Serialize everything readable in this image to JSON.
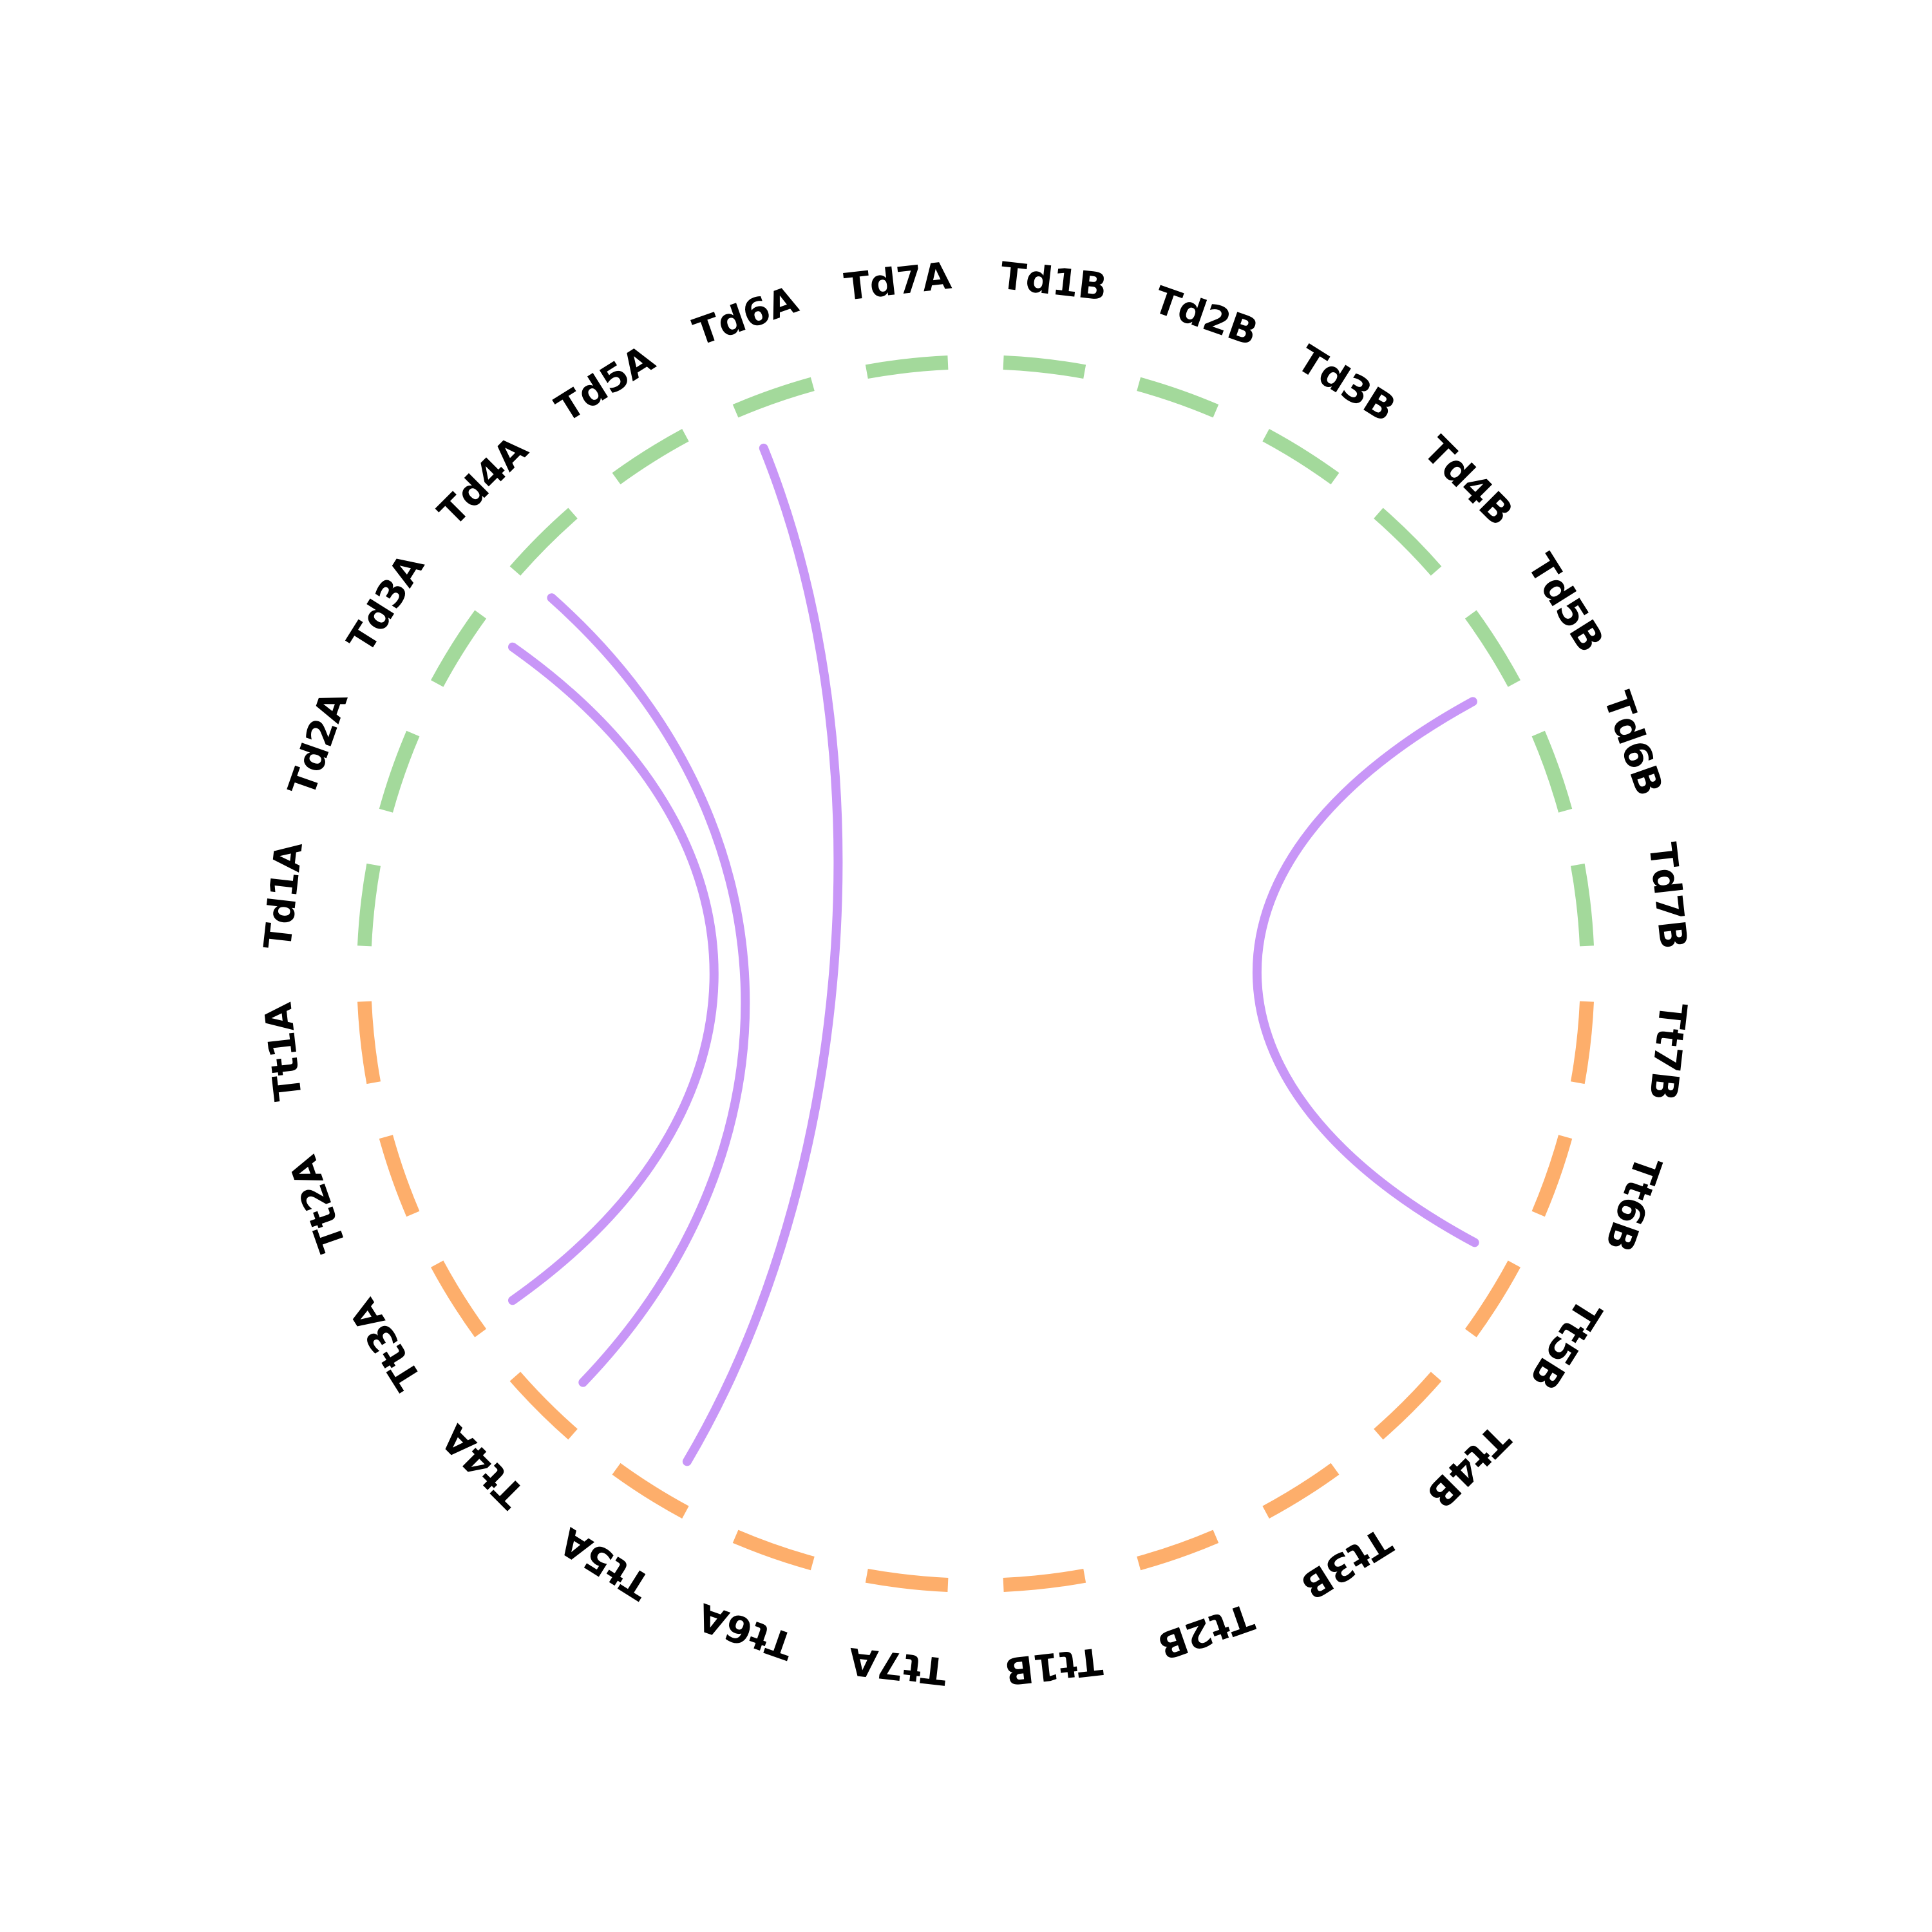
{
  "colors": {
    "group_td": "#a3d99b",
    "group_tt": "#fdae6b",
    "link": "#c896f7",
    "label": "#000000",
    "background": "#ffffff"
  },
  "segments": [
    {
      "id": "Td1A",
      "label": "Td1A",
      "group": "td"
    },
    {
      "id": "Td2A",
      "label": "Td2A",
      "group": "td"
    },
    {
      "id": "Td3A",
      "label": "Td3A",
      "group": "td"
    },
    {
      "id": "Td4A",
      "label": "Td4A",
      "group": "td"
    },
    {
      "id": "Td5A",
      "label": "Td5A",
      "group": "td"
    },
    {
      "id": "Td6A",
      "label": "Td6A",
      "group": "td"
    },
    {
      "id": "Td7A",
      "label": "Td7A",
      "group": "td"
    },
    {
      "id": "Td1B",
      "label": "Td1B",
      "group": "td"
    },
    {
      "id": "Td2B",
      "label": "Td2B",
      "group": "td"
    },
    {
      "id": "Td3B",
      "label": "Td3B",
      "group": "td"
    },
    {
      "id": "Td4B",
      "label": "Td4B",
      "group": "td"
    },
    {
      "id": "Td5B",
      "label": "Td5B",
      "group": "td"
    },
    {
      "id": "Td6B",
      "label": "Td6B",
      "group": "td"
    },
    {
      "id": "Td7B",
      "label": "Td7B",
      "group": "td"
    },
    {
      "id": "Tt7B",
      "label": "Tt7B",
      "group": "tt"
    },
    {
      "id": "Tt6B",
      "label": "Tt6B",
      "group": "tt"
    },
    {
      "id": "Tt5B",
      "label": "Tt5B",
      "group": "tt"
    },
    {
      "id": "Tt4B",
      "label": "Tt4B",
      "group": "tt"
    },
    {
      "id": "Tt3B",
      "label": "Tt3B",
      "group": "tt"
    },
    {
      "id": "Tt2B",
      "label": "Tt2B",
      "group": "tt"
    },
    {
      "id": "Tt1B",
      "label": "Tt1B",
      "group": "tt"
    },
    {
      "id": "Tt7A",
      "label": "Tt7A",
      "group": "tt"
    },
    {
      "id": "Tt6A",
      "label": "Tt6A",
      "group": "tt"
    },
    {
      "id": "Tt5A",
      "label": "Tt5A",
      "group": "tt"
    },
    {
      "id": "Tt4A",
      "label": "Tt4A",
      "group": "tt"
    },
    {
      "id": "Tt3A",
      "label": "Tt3A",
      "group": "tt"
    },
    {
      "id": "Tt2A",
      "label": "Tt2A",
      "group": "tt"
    },
    {
      "id": "Tt1A",
      "label": "Tt1A",
      "group": "tt"
    }
  ],
  "links": [
    {
      "source": "Td3A",
      "source_pos": 0.9,
      "target": "Tt3A",
      "target_pos": 0.1
    },
    {
      "source": "Td4A",
      "source_pos": 0.05,
      "target": "Tt4A",
      "target_pos": 0.35
    },
    {
      "source": "Td6A",
      "source_pos": 0.15,
      "target": "Tt5A",
      "target_pos": 0.3
    },
    {
      "source": "Td5B",
      "source_pos": 0.95,
      "target": "Tt5B",
      "target_pos": 0.0
    }
  ]
}
